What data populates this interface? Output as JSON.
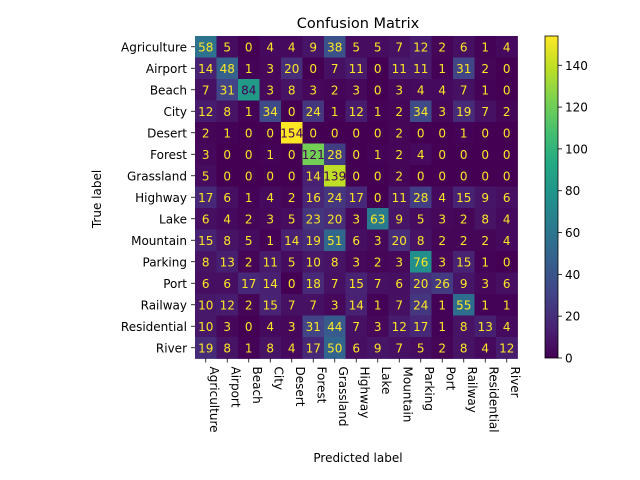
{
  "chart_data": {
    "type": "heatmap",
    "title": "Confusion Matrix",
    "xlabel": "Predicted label",
    "ylabel": "True label",
    "labels": [
      "Agriculture",
      "Airport",
      "Beach",
      "City",
      "Desert",
      "Forest",
      "Grassland",
      "Highway",
      "Lake",
      "Mountain",
      "Parking",
      "Port",
      "Railway",
      "Residential",
      "River"
    ],
    "matrix": [
      [
        58,
        5,
        0,
        4,
        4,
        9,
        38,
        5,
        5,
        7,
        12,
        2,
        6,
        1,
        4
      ],
      [
        14,
        48,
        1,
        3,
        20,
        0,
        7,
        11,
        0,
        11,
        11,
        1,
        31,
        2,
        0
      ],
      [
        7,
        31,
        84,
        3,
        8,
        3,
        2,
        3,
        0,
        3,
        4,
        4,
        7,
        1,
        0
      ],
      [
        12,
        8,
        1,
        34,
        0,
        24,
        1,
        12,
        1,
        2,
        34,
        3,
        19,
        7,
        2
      ],
      [
        2,
        1,
        0,
        0,
        154,
        0,
        0,
        0,
        0,
        2,
        0,
        0,
        1,
        0,
        0
      ],
      [
        3,
        0,
        0,
        1,
        0,
        121,
        28,
        0,
        1,
        2,
        4,
        0,
        0,
        0,
        0
      ],
      [
        5,
        0,
        0,
        0,
        0,
        14,
        139,
        0,
        0,
        2,
        0,
        0,
        0,
        0,
        0
      ],
      [
        17,
        6,
        1,
        4,
        2,
        16,
        24,
        17,
        0,
        11,
        28,
        4,
        15,
        9,
        6
      ],
      [
        6,
        4,
        2,
        3,
        5,
        23,
        20,
        3,
        63,
        9,
        5,
        3,
        2,
        8,
        4
      ],
      [
        15,
        8,
        5,
        1,
        14,
        19,
        51,
        6,
        3,
        20,
        8,
        2,
        2,
        2,
        4
      ],
      [
        8,
        13,
        2,
        11,
        5,
        10,
        8,
        3,
        2,
        3,
        76,
        3,
        15,
        1,
        0
      ],
      [
        6,
        6,
        17,
        14,
        0,
        18,
        7,
        15,
        7,
        6,
        20,
        26,
        9,
        3,
        6
      ],
      [
        10,
        12,
        2,
        15,
        7,
        7,
        3,
        14,
        1,
        7,
        24,
        1,
        55,
        1,
        1
      ],
      [
        10,
        3,
        0,
        4,
        3,
        31,
        44,
        7,
        3,
        12,
        17,
        1,
        8,
        13,
        4
      ],
      [
        19,
        8,
        1,
        8,
        4,
        17,
        50,
        6,
        9,
        7,
        5,
        2,
        8,
        4,
        12
      ]
    ],
    "colormap": "viridis",
    "value_range": [
      0,
      154
    ],
    "colorbar_ticks": [
      0,
      20,
      40,
      60,
      80,
      100,
      120,
      140
    ],
    "grid": false
  }
}
